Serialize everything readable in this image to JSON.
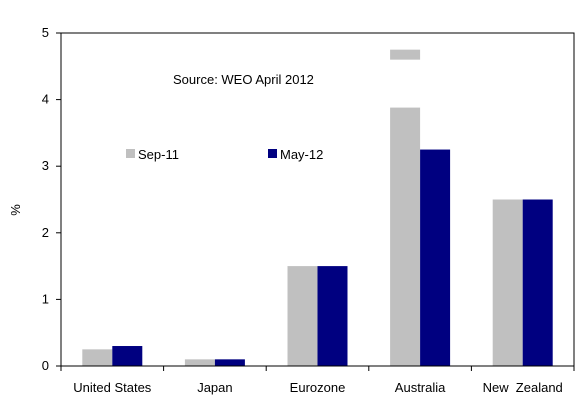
{
  "chart_data": {
    "type": "bar",
    "annotation": "Source: WEO April 2012",
    "ylabel": "%",
    "xlabel": "",
    "ylim": [
      0,
      5
    ],
    "yticks": [
      0,
      1,
      2,
      3,
      4,
      5
    ],
    "grid": false,
    "legend_position": "upper-left, inside plot",
    "categories": [
      "United States",
      "Japan",
      "Eurozone",
      "Australia",
      "New  Zealand"
    ],
    "series": [
      {
        "name": "Sep-11",
        "color": "#c0c0c0",
        "values": [
          0.25,
          0.1,
          1.5,
          3.88,
          2.5
        ]
      },
      {
        "name": "May-12",
        "color": "#000080",
        "values": [
          0.3,
          0.1,
          1.5,
          3.25,
          2.5
        ]
      }
    ],
    "extra_mark": {
      "category": "Australia",
      "series": "Sep-11",
      "range": [
        4.6,
        4.75
      ],
      "color": "#c0c0c0"
    }
  }
}
